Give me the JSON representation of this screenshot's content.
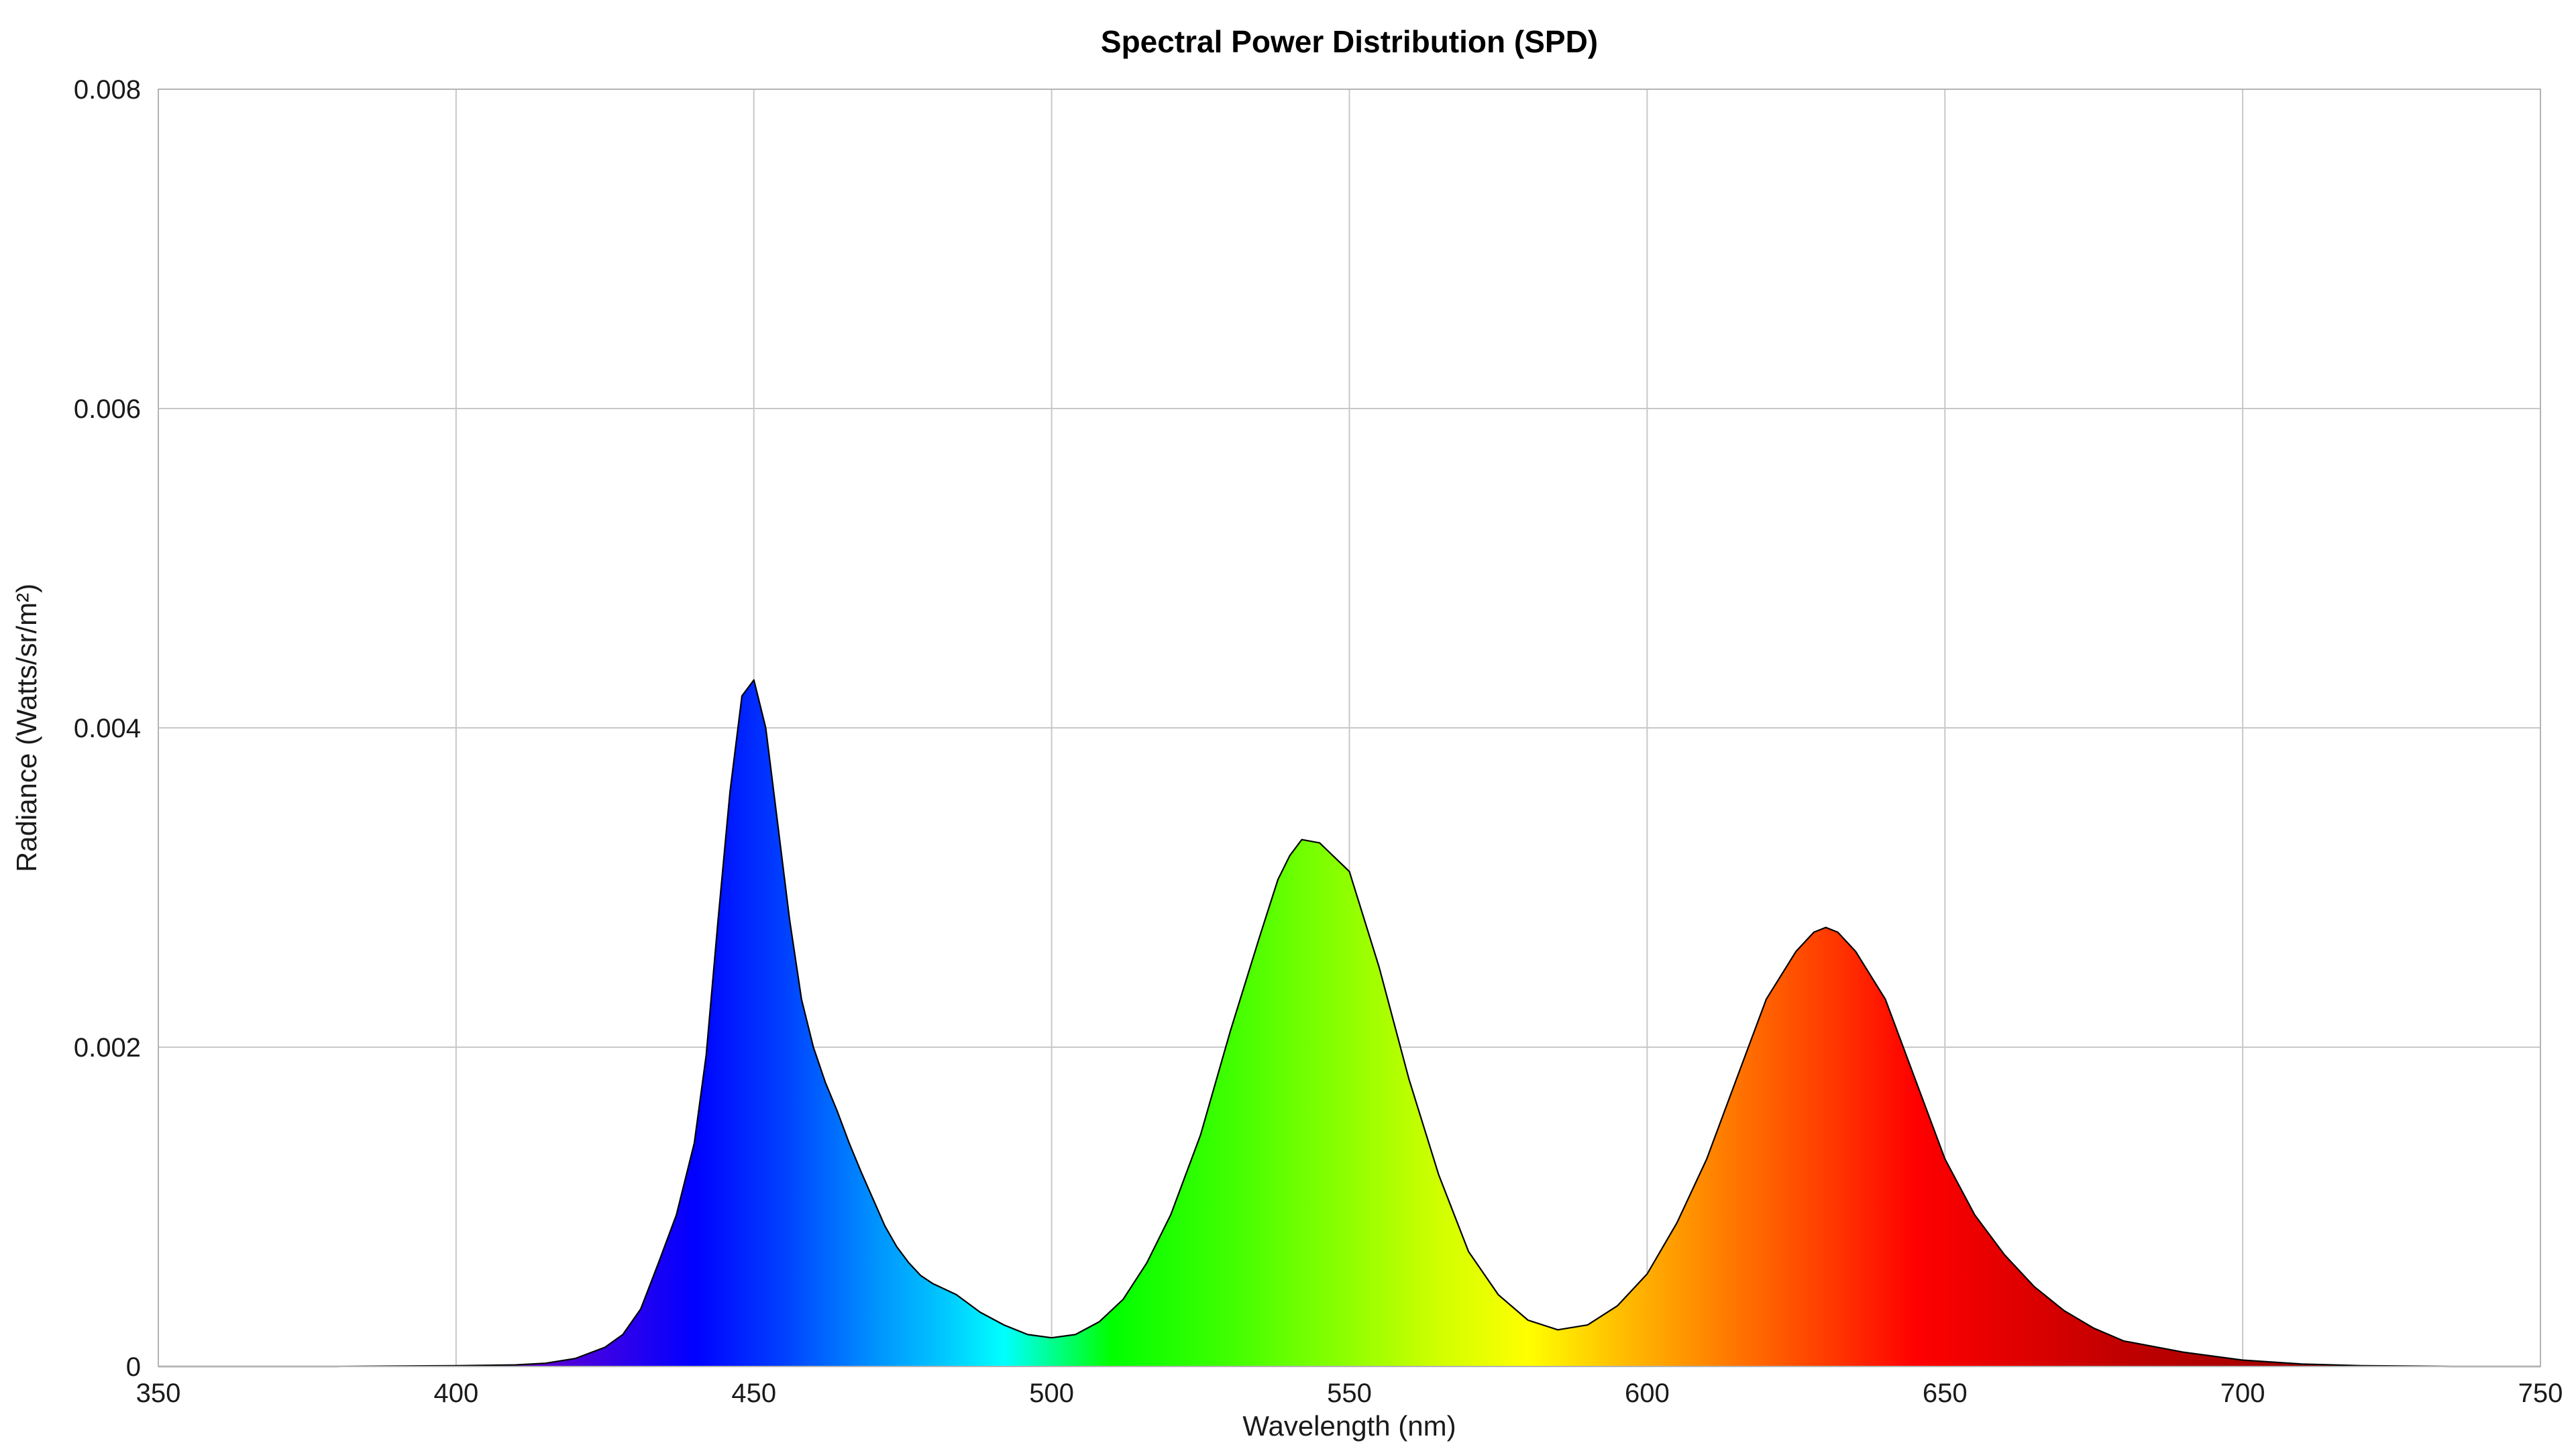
{
  "chart_data": {
    "type": "area",
    "title": "Spectral Power Distribution (SPD)",
    "xlabel": "Wavelength (nm)",
    "ylabel": "Radiance (Watts/sr/m²)",
    "xlim": [
      350,
      750
    ],
    "ylim": [
      0,
      0.008
    ],
    "x_ticks": [
      "350",
      "400",
      "450",
      "500",
      "550",
      "600",
      "650",
      "700",
      "750"
    ],
    "y_ticks": [
      "0",
      "0.002",
      "0.004",
      "0.006",
      "0.008"
    ],
    "grid": true,
    "legend": "none",
    "fill": "visible-spectrum gradient",
    "x": [
      350,
      380,
      400,
      410,
      415,
      420,
      425,
      428,
      431,
      434,
      437,
      440,
      442,
      444,
      446,
      448,
      450,
      452,
      454,
      456,
      458,
      460,
      462,
      464,
      466,
      468,
      470,
      472,
      474,
      476,
      478,
      480,
      484,
      488,
      492,
      496,
      500,
      504,
      508,
      512,
      516,
      520,
      525,
      530,
      535,
      538,
      540,
      542,
      545,
      550,
      555,
      560,
      565,
      570,
      575,
      580,
      585,
      590,
      595,
      600,
      605,
      610,
      615,
      620,
      625,
      628,
      630,
      632,
      635,
      640,
      645,
      650,
      655,
      660,
      665,
      670,
      675,
      680,
      690,
      700,
      710,
      720,
      735,
      750
    ],
    "values": [
      0,
      0,
      5e-06,
      1e-05,
      2e-05,
      5e-05,
      0.00012,
      0.0002,
      0.00036,
      0.00065,
      0.00095,
      0.0014,
      0.00195,
      0.0028,
      0.0036,
      0.0042,
      0.0043,
      0.004,
      0.0034,
      0.0028,
      0.0023,
      0.002,
      0.00178,
      0.0016,
      0.0014,
      0.00122,
      0.00105,
      0.00088,
      0.00075,
      0.00065,
      0.00057,
      0.00052,
      0.00045,
      0.00034,
      0.00026,
      0.0002,
      0.00018,
      0.0002,
      0.00028,
      0.00042,
      0.00065,
      0.00095,
      0.00145,
      0.0021,
      0.0027,
      0.00305,
      0.0032,
      0.0033,
      0.00328,
      0.0031,
      0.0025,
      0.0018,
      0.0012,
      0.00072,
      0.00045,
      0.00029,
      0.00023,
      0.00026,
      0.00038,
      0.00058,
      0.0009,
      0.0013,
      0.0018,
      0.0023,
      0.0026,
      0.00272,
      0.00275,
      0.00272,
      0.0026,
      0.0023,
      0.0018,
      0.0013,
      0.00095,
      0.0007,
      0.0005,
      0.00035,
      0.00024,
      0.00016,
      9e-05,
      4e-05,
      1.5e-05,
      5e-06,
      0,
      0
    ]
  }
}
